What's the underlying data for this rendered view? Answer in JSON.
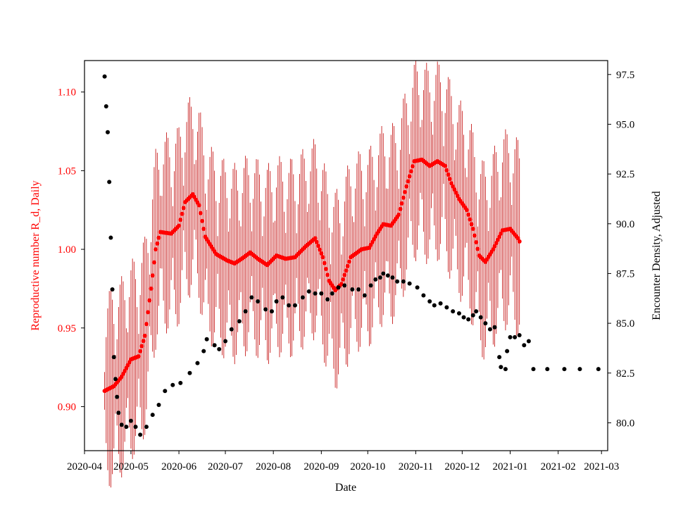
{
  "chart_data": {
    "type": "scatter",
    "xlabel": "Date",
    "ylabel_left": "Reproductive number R_d, Daily",
    "ylabel_right": "Encounter Density, Adjusted",
    "x_range": [
      "2020-04-01",
      "2021-03-05"
    ],
    "ylim_left": [
      0.872,
      1.12
    ],
    "ylim_right": [
      78.6,
      98.2
    ],
    "x_ticks": [
      "2020-04",
      "2020-05",
      "2020-06",
      "2020-07",
      "2020-08",
      "2020-09",
      "2020-10",
      "2020-11",
      "2020-12",
      "2021-01",
      "2021-02",
      "2021-03"
    ],
    "y_ticks_left": [
      0.9,
      0.95,
      1.0,
      1.05,
      1.1
    ],
    "y_ticks_left_labels": [
      "0.90",
      "0.95",
      "1.00",
      "1.05",
      "1.10"
    ],
    "y_ticks_right": [
      80.0,
      82.5,
      85.0,
      87.5,
      90.0,
      92.5,
      95.0,
      97.5
    ],
    "y_ticks_right_labels": [
      "80.0",
      "82.5",
      "85.0",
      "87.5",
      "90.0",
      "92.5",
      "95.0",
      "97.5"
    ],
    "left_axis_color": "#ff0000",
    "right_axis_color": "#000000",
    "grid": false,
    "legend": "none",
    "series": [
      {
        "axis": "left",
        "color": "#ff0000",
        "error_bar_color": "#c00000",
        "error_bar_range_days": [
          "2020-04-14",
          "2021-01-07"
        ],
        "points": [
          [
            "2020-04-14",
            0.91
          ],
          [
            "2020-04-20",
            0.913
          ],
          [
            "2020-04-25",
            0.919
          ],
          [
            "2020-05-01",
            0.93
          ],
          [
            "2020-05-06",
            0.932
          ],
          [
            "2020-05-10",
            0.945
          ],
          [
            "2020-05-14",
            0.975
          ],
          [
            "2020-05-17",
            1.0
          ],
          [
            "2020-05-20",
            1.011
          ],
          [
            "2020-05-27",
            1.01
          ],
          [
            "2020-06-01",
            1.015
          ],
          [
            "2020-06-05",
            1.03
          ],
          [
            "2020-06-10",
            1.035
          ],
          [
            "2020-06-14",
            1.028
          ],
          [
            "2020-06-18",
            1.008
          ],
          [
            "2020-06-25",
            0.997
          ],
          [
            "2020-07-02",
            0.993
          ],
          [
            "2020-07-07",
            0.991
          ],
          [
            "2020-07-13",
            0.995
          ],
          [
            "2020-07-17",
            0.998
          ],
          [
            "2020-07-22",
            0.994
          ],
          [
            "2020-07-28",
            0.99
          ],
          [
            "2020-08-03",
            0.996
          ],
          [
            "2020-08-09",
            0.994
          ],
          [
            "2020-08-15",
            0.995
          ],
          [
            "2020-08-22",
            1.002
          ],
          [
            "2020-08-28",
            1.007
          ],
          [
            "2020-09-02",
            0.995
          ],
          [
            "2020-09-06",
            0.98
          ],
          [
            "2020-09-10",
            0.974
          ],
          [
            "2020-09-14",
            0.978
          ],
          [
            "2020-09-20",
            0.995
          ],
          [
            "2020-09-27",
            1.0
          ],
          [
            "2020-10-02",
            1.001
          ],
          [
            "2020-10-07",
            1.01
          ],
          [
            "2020-10-11",
            1.016
          ],
          [
            "2020-10-16",
            1.015
          ],
          [
            "2020-10-21",
            1.022
          ],
          [
            "2020-10-26",
            1.04
          ],
          [
            "2020-10-31",
            1.056
          ],
          [
            "2020-11-05",
            1.057
          ],
          [
            "2020-11-10",
            1.053
          ],
          [
            "2020-11-15",
            1.056
          ],
          [
            "2020-11-20",
            1.053
          ],
          [
            "2020-11-24",
            1.042
          ],
          [
            "2020-11-29",
            1.032
          ],
          [
            "2020-12-04",
            1.025
          ],
          [
            "2020-12-08",
            1.013
          ],
          [
            "2020-12-12",
            0.996
          ],
          [
            "2020-12-16",
            0.992
          ],
          [
            "2020-12-21",
            1.0
          ],
          [
            "2020-12-27",
            1.012
          ],
          [
            "2021-01-01",
            1.013
          ],
          [
            "2021-01-06",
            1.007
          ],
          [
            "2021-01-07",
            1.005
          ]
        ]
      },
      {
        "axis": "right",
        "color": "#000000",
        "points": [
          [
            "2020-04-14",
            97.4
          ],
          [
            "2020-04-15",
            95.9
          ],
          [
            "2020-04-16",
            94.6
          ],
          [
            "2020-04-17",
            92.1
          ],
          [
            "2020-04-18",
            89.3
          ],
          [
            "2020-04-19",
            86.7
          ],
          [
            "2020-04-20",
            83.3
          ],
          [
            "2020-04-21",
            82.2
          ],
          [
            "2020-04-22",
            81.3
          ],
          [
            "2020-04-23",
            80.5
          ],
          [
            "2020-04-25",
            79.9
          ],
          [
            "2020-04-28",
            79.8
          ],
          [
            "2020-05-01",
            80.1
          ],
          [
            "2020-05-04",
            79.8
          ],
          [
            "2020-05-07",
            79.4
          ],
          [
            "2020-05-11",
            79.8
          ],
          [
            "2020-05-15",
            80.4
          ],
          [
            "2020-05-19",
            80.9
          ],
          [
            "2020-05-23",
            81.6
          ],
          [
            "2020-05-28",
            81.9
          ],
          [
            "2020-06-02",
            82.0
          ],
          [
            "2020-06-08",
            82.5
          ],
          [
            "2020-06-13",
            83.0
          ],
          [
            "2020-06-17",
            83.6
          ],
          [
            "2020-06-19",
            84.2
          ],
          [
            "2020-06-24",
            83.9
          ],
          [
            "2020-06-27",
            83.7
          ],
          [
            "2020-07-01",
            84.1
          ],
          [
            "2020-07-05",
            84.7
          ],
          [
            "2020-07-10",
            85.1
          ],
          [
            "2020-07-14",
            85.6
          ],
          [
            "2020-07-18",
            86.3
          ],
          [
            "2020-07-22",
            86.1
          ],
          [
            "2020-07-27",
            85.7
          ],
          [
            "2020-07-31",
            85.6
          ],
          [
            "2020-08-03",
            86.1
          ],
          [
            "2020-08-07",
            86.3
          ],
          [
            "2020-08-11",
            85.9
          ],
          [
            "2020-08-15",
            85.9
          ],
          [
            "2020-08-20",
            86.3
          ],
          [
            "2020-08-24",
            86.6
          ],
          [
            "2020-08-28",
            86.5
          ],
          [
            "2020-09-01",
            86.5
          ],
          [
            "2020-09-05",
            86.2
          ],
          [
            "2020-09-08",
            86.5
          ],
          [
            "2020-09-12",
            86.8
          ],
          [
            "2020-09-16",
            86.9
          ],
          [
            "2020-09-21",
            86.7
          ],
          [
            "2020-09-25",
            86.7
          ],
          [
            "2020-09-29",
            86.4
          ],
          [
            "2020-10-03",
            86.9
          ],
          [
            "2020-10-06",
            87.2
          ],
          [
            "2020-10-09",
            87.3
          ],
          [
            "2020-10-11",
            87.5
          ],
          [
            "2020-10-14",
            87.4
          ],
          [
            "2020-10-17",
            87.3
          ],
          [
            "2020-10-20",
            87.1
          ],
          [
            "2020-10-24",
            87.1
          ],
          [
            "2020-10-28",
            87.0
          ],
          [
            "2020-11-02",
            86.8
          ],
          [
            "2020-11-06",
            86.4
          ],
          [
            "2020-11-10",
            86.1
          ],
          [
            "2020-11-13",
            85.9
          ],
          [
            "2020-11-17",
            86.0
          ],
          [
            "2020-11-21",
            85.8
          ],
          [
            "2020-11-25",
            85.6
          ],
          [
            "2020-11-29",
            85.5
          ],
          [
            "2020-12-02",
            85.3
          ],
          [
            "2020-12-05",
            85.2
          ],
          [
            "2020-12-08",
            85.4
          ],
          [
            "2020-12-10",
            85.6
          ],
          [
            "2020-12-13",
            85.3
          ],
          [
            "2020-12-16",
            85.0
          ],
          [
            "2020-12-19",
            84.7
          ],
          [
            "2020-12-22",
            84.8
          ],
          [
            "2020-12-25",
            83.3
          ],
          [
            "2020-12-26",
            82.8
          ],
          [
            "2020-12-29",
            82.7
          ],
          [
            "2020-12-30",
            83.6
          ],
          [
            "2021-01-01",
            84.3
          ],
          [
            "2021-01-04",
            84.3
          ],
          [
            "2021-01-07",
            84.4
          ],
          [
            "2021-01-10",
            83.9
          ],
          [
            "2021-01-13",
            84.1
          ],
          [
            "2021-01-16",
            82.7
          ],
          [
            "2021-01-25",
            82.7
          ],
          [
            "2021-02-05",
            82.7
          ],
          [
            "2021-02-15",
            82.7
          ],
          [
            "2021-02-27",
            82.7
          ]
        ]
      }
    ]
  }
}
